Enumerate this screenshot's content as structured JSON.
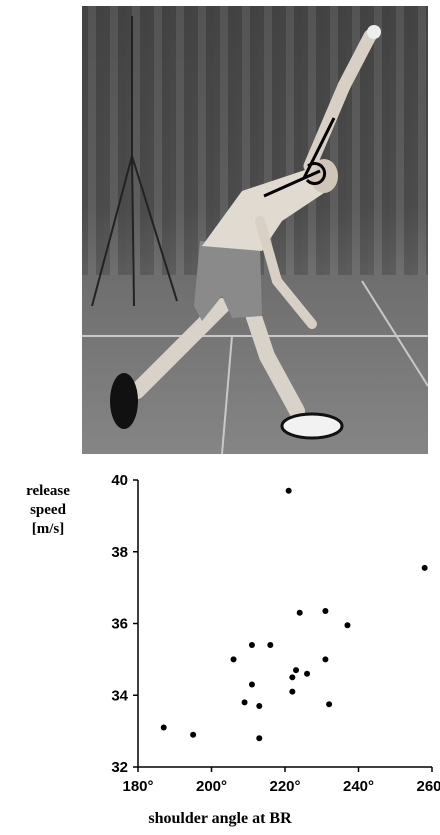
{
  "chart_data": {
    "type": "scatter",
    "title": "",
    "xlabel": "shoulder angle at BR",
    "ylabel_lines": [
      "release",
      "speed",
      "[m/s]"
    ],
    "xlim": [
      180,
      260
    ],
    "ylim": [
      32,
      40
    ],
    "x_ticks": [
      180,
      200,
      220,
      240,
      260
    ],
    "x_tick_labels": [
      "180°",
      "200°",
      "220°",
      "240°",
      "260°"
    ],
    "y_ticks": [
      32,
      34,
      36,
      38,
      40
    ],
    "y_tick_labels": [
      "32",
      "34",
      "36",
      "38",
      "40"
    ],
    "grid": false,
    "marker_color": "#000000",
    "points": [
      {
        "x": 187,
        "y": 33.1
      },
      {
        "x": 195,
        "y": 32.9
      },
      {
        "x": 206,
        "y": 35.0
      },
      {
        "x": 209,
        "y": 33.8
      },
      {
        "x": 211,
        "y": 34.3
      },
      {
        "x": 211,
        "y": 35.4
      },
      {
        "x": 213,
        "y": 33.7
      },
      {
        "x": 213,
        "y": 32.8
      },
      {
        "x": 216,
        "y": 35.4
      },
      {
        "x": 221,
        "y": 39.7
      },
      {
        "x": 222,
        "y": 34.1
      },
      {
        "x": 222,
        "y": 34.5
      },
      {
        "x": 223,
        "y": 34.7
      },
      {
        "x": 224,
        "y": 36.3
      },
      {
        "x": 226,
        "y": 34.6
      },
      {
        "x": 231,
        "y": 36.35
      },
      {
        "x": 231,
        "y": 35.0
      },
      {
        "x": 232,
        "y": 33.75
      },
      {
        "x": 237,
        "y": 35.95
      },
      {
        "x": 258,
        "y": 37.55
      }
    ]
  }
}
